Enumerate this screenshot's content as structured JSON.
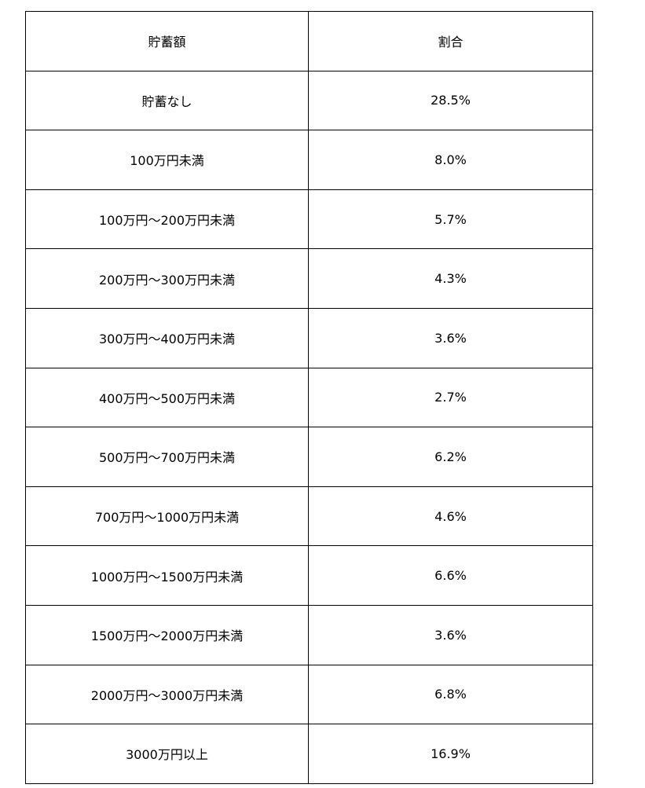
{
  "table": {
    "headers": [
      "貯蓄額",
      "割合"
    ],
    "rows": [
      [
        "貯蓄なし",
        "28.5%"
      ],
      [
        "100万円未満",
        "8.0%"
      ],
      [
        "100万円～200万円未満",
        "5.7%"
      ],
      [
        "200万円～300万円未満",
        "4.3%"
      ],
      [
        "300万円～400万円未満",
        "3.6%"
      ],
      [
        "400万円～500万円未満",
        "2.7%"
      ],
      [
        "500万円～700万円未満",
        "6.2%"
      ],
      [
        "700万円～1000万円未満",
        "4.6%"
      ],
      [
        "1000万円～1500万円未満",
        "6.6%"
      ],
      [
        "1500万円～2000万円未満",
        "3.6%"
      ],
      [
        "2000万円～3000万円未満",
        "6.8%"
      ],
      [
        "3000万円以上",
        "16.9%"
      ]
    ]
  }
}
